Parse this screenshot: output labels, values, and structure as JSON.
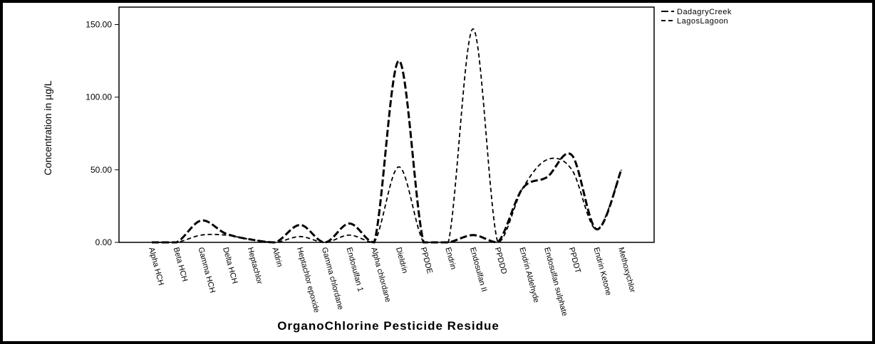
{
  "chart_data": {
    "type": "line",
    "x_label": "OrganoChlorine Pesticide Residue",
    "y_label": "Concentration in µg/L",
    "categories": [
      "Alpha HCH",
      "Beta HCH",
      "Gamma HCH",
      "Delta HCH",
      "Heptachlor",
      "Aldrin",
      "Heptachlor epoxide",
      "Gamma chlordane",
      "Endosulfan 1",
      "Alpha chlordane",
      "Dieldrin",
      "PPDDE",
      "Endrin",
      "Endosulfan II",
      "PPDDD",
      "Endrin Aldehyde",
      "Endosulfan sulphate",
      "PPDDT",
      "Endrin Ketone",
      "Methoxychlor"
    ],
    "series": [
      {
        "name": "DadagryCreek",
        "color": "#000000",
        "values": [
          0,
          0,
          15,
          6,
          2,
          0,
          12,
          0,
          13,
          0,
          125,
          0,
          0,
          5,
          0,
          37,
          45,
          60,
          9,
          50
        ]
      },
      {
        "name": "LagosLagoon",
        "color": "#000000",
        "values": [
          0,
          0,
          5,
          5,
          2,
          0,
          4,
          0,
          5,
          0,
          52,
          0,
          0,
          147,
          0,
          37,
          57,
          50,
          9,
          50
        ]
      }
    ],
    "ylim": [
      0,
      162
    ],
    "yticks": [
      {
        "value": 0,
        "label": "0.00"
      },
      {
        "value": 50,
        "label": "50.00"
      },
      {
        "value": 100,
        "label": "100.00"
      },
      {
        "value": 150,
        "label": "150.00"
      }
    ],
    "legend": "top-right"
  }
}
